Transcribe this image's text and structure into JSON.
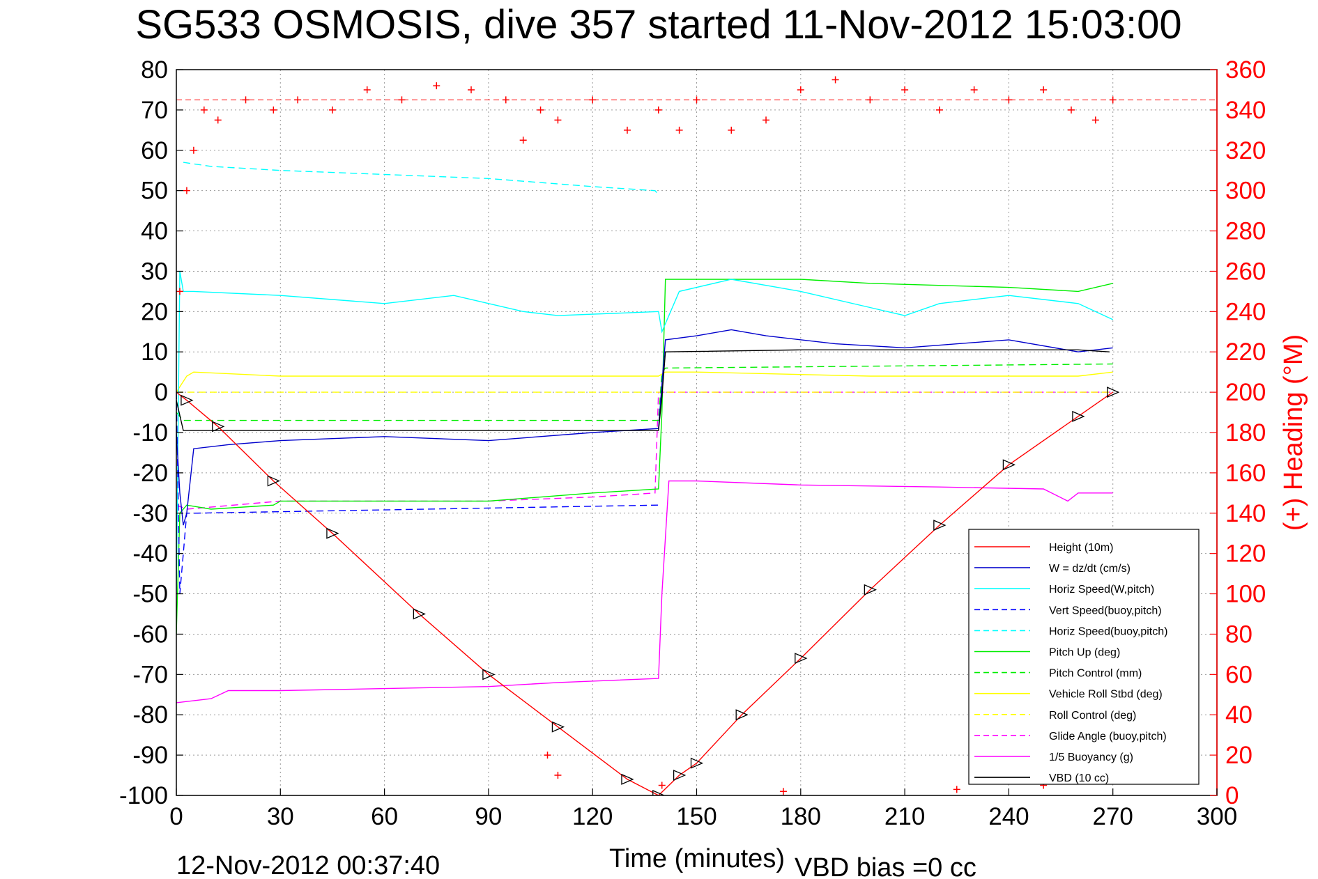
{
  "chart_data": {
    "type": "line",
    "title": "SG533 OSMOSIS, dive 357 started 11-Nov-2012 15:03:00",
    "xlabel": "Time (minutes)",
    "ylabel": "",
    "y2label": "(+) Heading (°M)",
    "xlim": [
      0,
      300
    ],
    "ylim": [
      -100,
      80
    ],
    "y2lim": [
      0,
      360
    ],
    "grid": true,
    "legend_position": "bottom-right",
    "x_ticks": [
      "0",
      "30",
      "60",
      "90",
      "120",
      "150",
      "180",
      "210",
      "240",
      "270",
      "300"
    ],
    "y_ticks": [
      "80",
      "70",
      "60",
      "50",
      "40",
      "30",
      "20",
      "10",
      "0",
      "-10",
      "-20",
      "-30",
      "-40",
      "-50",
      "-60",
      "-70",
      "-80",
      "-90",
      "-100"
    ],
    "y2_ticks": [
      "360",
      "340",
      "320",
      "300",
      "280",
      "260",
      "240",
      "220",
      "200",
      "180",
      "160",
      "140",
      "120",
      "100",
      "80",
      "60",
      "40",
      "20",
      "0"
    ],
    "footer_left": "12-Nov-2012 00:37:40",
    "footer_right": "VBD bias =0 cc",
    "series": [
      {
        "name": "Height (10m)",
        "color": "#ff0000",
        "style": "solid",
        "points": [
          [
            0,
            0
          ],
          [
            3,
            -2
          ],
          [
            12,
            -8.5
          ],
          [
            28,
            -22
          ],
          [
            45,
            -35
          ],
          [
            70,
            -55
          ],
          [
            90,
            -70
          ],
          [
            110,
            -83
          ],
          [
            130,
            -96
          ],
          [
            139,
            -100
          ],
          [
            145,
            -95
          ],
          [
            150,
            -92
          ],
          [
            163,
            -80
          ],
          [
            180,
            -66
          ],
          [
            200,
            -49
          ],
          [
            220,
            -33
          ],
          [
            240,
            -18
          ],
          [
            260,
            -6
          ],
          [
            270,
            0
          ]
        ]
      },
      {
        "name": "W = dz/dt (cm/s)",
        "color": "#0000cc",
        "style": "solid",
        "points": [
          [
            0,
            -10
          ],
          [
            1,
            -25
          ],
          [
            2,
            -33
          ],
          [
            3,
            -30
          ],
          [
            5,
            -14
          ],
          [
            15,
            -13
          ],
          [
            30,
            -12
          ],
          [
            60,
            -11
          ],
          [
            90,
            -12
          ],
          [
            120,
            -10
          ],
          [
            139,
            -9
          ],
          [
            140,
            2
          ],
          [
            141,
            13
          ],
          [
            150,
            14
          ],
          [
            160,
            15.5
          ],
          [
            170,
            14
          ],
          [
            190,
            12
          ],
          [
            210,
            11
          ],
          [
            240,
            13
          ],
          [
            260,
            10
          ],
          [
            270,
            11
          ]
        ]
      },
      {
        "name": "Horiz Speed(W,pitch)",
        "color": "#00ffff",
        "style": "solid",
        "points": [
          [
            0,
            -50
          ],
          [
            1,
            30
          ],
          [
            2,
            25
          ],
          [
            5,
            25
          ],
          [
            30,
            24
          ],
          [
            60,
            22
          ],
          [
            80,
            24
          ],
          [
            100,
            20
          ],
          [
            110,
            19
          ],
          [
            139,
            20
          ],
          [
            140,
            15
          ],
          [
            145,
            25
          ],
          [
            160,
            28
          ],
          [
            180,
            25
          ],
          [
            200,
            21
          ],
          [
            210,
            19
          ],
          [
            220,
            22
          ],
          [
            240,
            24
          ],
          [
            260,
            22
          ],
          [
            270,
            18
          ]
        ]
      },
      {
        "name": "Vert Speed(buoy,pitch)",
        "color": "#0000ff",
        "style": "dashed",
        "points": [
          [
            0,
            0
          ],
          [
            1,
            -50
          ],
          [
            2,
            -40
          ],
          [
            3,
            -30
          ],
          [
            5,
            -30
          ],
          [
            139,
            -28
          ]
        ]
      },
      {
        "name": "Horiz Speed(buoy,pitch)",
        "color": "#00ffff",
        "style": "dashed",
        "points": [
          [
            2,
            57
          ],
          [
            10,
            56
          ],
          [
            30,
            55
          ],
          [
            60,
            54
          ],
          [
            90,
            53
          ],
          [
            120,
            51
          ],
          [
            138,
            50
          ],
          [
            139,
            49
          ]
        ]
      },
      {
        "name": "Pitch Up (deg)",
        "color": "#00ee00",
        "style": "solid",
        "points": [
          [
            0,
            -60
          ],
          [
            1,
            -30
          ],
          [
            3,
            -28
          ],
          [
            10,
            -29
          ],
          [
            28,
            -28
          ],
          [
            30,
            -27
          ],
          [
            60,
            -27
          ],
          [
            90,
            -27
          ],
          [
            120,
            -25
          ],
          [
            139,
            -24
          ],
          [
            140,
            -5
          ],
          [
            141,
            28
          ],
          [
            150,
            28
          ],
          [
            160,
            28
          ],
          [
            180,
            28
          ],
          [
            200,
            27
          ],
          [
            240,
            26
          ],
          [
            260,
            25
          ],
          [
            270,
            27
          ]
        ]
      },
      {
        "name": "Pitch Control (mm)",
        "color": "#00ee00",
        "style": "dashed",
        "points": [
          [
            0,
            -5
          ],
          [
            2,
            -7
          ],
          [
            139,
            -7
          ],
          [
            140,
            5
          ],
          [
            141,
            6
          ],
          [
            270,
            7
          ]
        ]
      },
      {
        "name": "Vehicle Roll Stbd (deg)",
        "color": "#ffff00",
        "style": "solid",
        "points": [
          [
            0,
            0
          ],
          [
            3,
            4
          ],
          [
            5,
            5
          ],
          [
            30,
            4
          ],
          [
            60,
            4
          ],
          [
            90,
            4
          ],
          [
            120,
            4
          ],
          [
            139,
            4
          ],
          [
            141,
            5
          ],
          [
            150,
            5
          ],
          [
            200,
            4
          ],
          [
            240,
            4
          ],
          [
            260,
            4
          ],
          [
            270,
            5
          ]
        ]
      },
      {
        "name": "Roll Control (deg)",
        "color": "#ffff00",
        "style": "dashed",
        "points": [
          [
            0,
            0
          ],
          [
            139,
            0
          ],
          [
            140,
            0
          ],
          [
            270,
            0
          ]
        ]
      },
      {
        "name": "Glide Angle (buoy,pitch)",
        "color": "#ff00ff",
        "style": "dashed",
        "points": [
          [
            0,
            -28
          ],
          [
            3,
            -29
          ],
          [
            30,
            -27
          ],
          [
            60,
            -27
          ],
          [
            90,
            -27
          ],
          [
            120,
            -26
          ],
          [
            138,
            -25
          ],
          [
            139,
            0
          ],
          [
            270,
            0
          ]
        ]
      },
      {
        "name": "1/5 Buoyancy (g)",
        "color": "#ff00ff",
        "style": "solid",
        "points": [
          [
            0,
            -77
          ],
          [
            10,
            -76
          ],
          [
            15,
            -74
          ],
          [
            30,
            -74
          ],
          [
            60,
            -73.5
          ],
          [
            90,
            -73
          ],
          [
            110,
            -72
          ],
          [
            139,
            -71
          ],
          [
            140,
            -50
          ],
          [
            142,
            -22
          ],
          [
            150,
            -22
          ],
          [
            180,
            -23
          ],
          [
            220,
            -23.5
          ],
          [
            250,
            -24
          ],
          [
            257,
            -27
          ],
          [
            260,
            -25
          ],
          [
            270,
            -25
          ]
        ]
      },
      {
        "name": "VBD (10 cc)",
        "color": "#000000",
        "style": "solid",
        "points": [
          [
            0,
            -2
          ],
          [
            2,
            -9.5
          ],
          [
            60,
            -9.5
          ],
          [
            139,
            -9.5
          ],
          [
            140,
            -1
          ],
          [
            141,
            10
          ],
          [
            180,
            10.5
          ],
          [
            260,
            10.5
          ],
          [
            269,
            10
          ]
        ]
      }
    ],
    "heading_series": {
      "axis": "right",
      "marker": "+",
      "color": "#ff0000",
      "mean": 345,
      "points": [
        [
          1,
          250
        ],
        [
          3,
          300
        ],
        [
          5,
          320
        ],
        [
          8,
          340
        ],
        [
          12,
          335
        ],
        [
          20,
          345
        ],
        [
          28,
          340
        ],
        [
          35,
          345
        ],
        [
          45,
          340
        ],
        [
          55,
          350
        ],
        [
          65,
          345
        ],
        [
          75,
          352
        ],
        [
          85,
          350
        ],
        [
          95,
          345
        ],
        [
          100,
          325
        ],
        [
          105,
          340
        ],
        [
          110,
          335
        ],
        [
          120,
          345
        ],
        [
          130,
          330
        ],
        [
          139,
          340
        ],
        [
          145,
          330
        ],
        [
          150,
          345
        ],
        [
          160,
          330
        ],
        [
          170,
          335
        ],
        [
          180,
          350
        ],
        [
          190,
          355
        ],
        [
          200,
          345
        ],
        [
          210,
          350
        ],
        [
          220,
          340
        ],
        [
          230,
          350
        ],
        [
          240,
          345
        ],
        [
          250,
          350
        ],
        [
          258,
          340
        ],
        [
          265,
          335
        ],
        [
          270,
          345
        ],
        [
          107,
          20
        ],
        [
          110,
          10
        ],
        [
          140,
          5
        ],
        [
          175,
          2
        ],
        [
          225,
          3
        ],
        [
          250,
          5
        ]
      ]
    }
  }
}
